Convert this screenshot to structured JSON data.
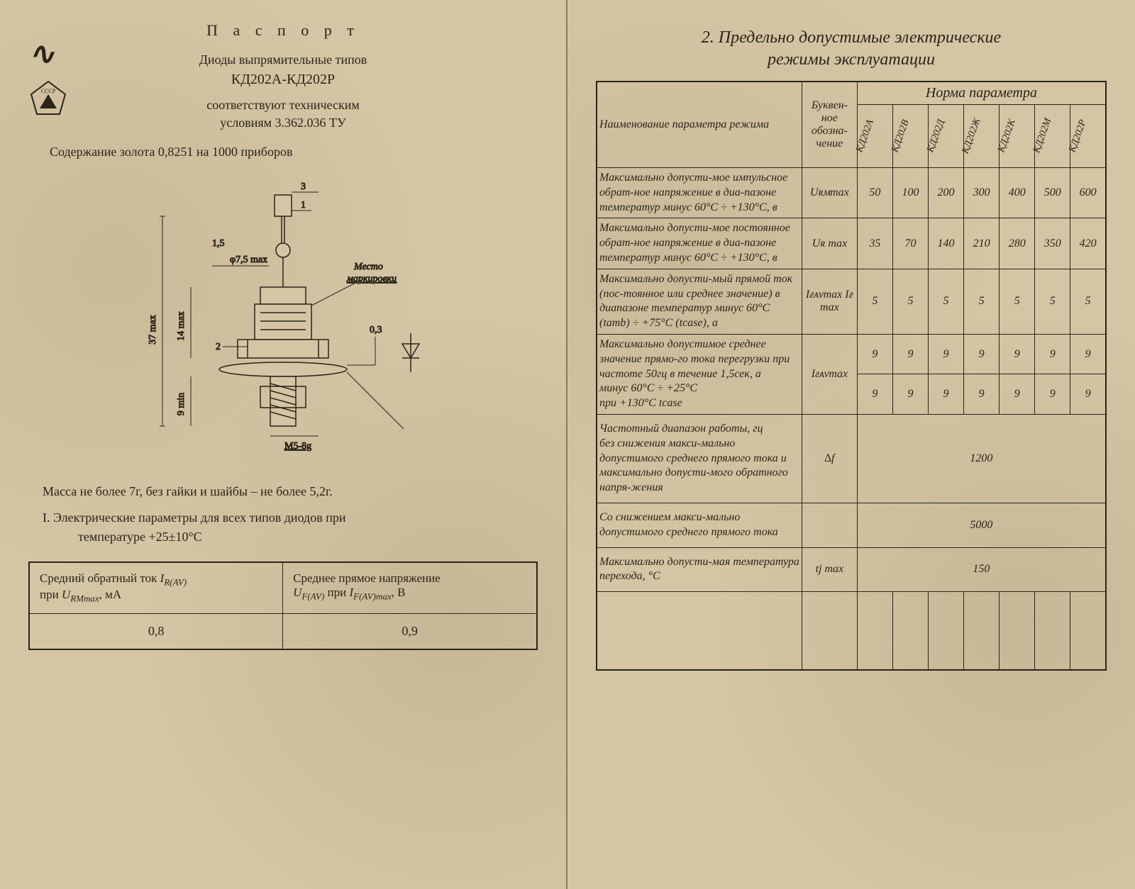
{
  "left": {
    "title": "П а с п о р т",
    "line1": "Диоды выпрямительные типов",
    "line2": "КД202А-КД202Р",
    "line3": "соответствуют техническим",
    "line4": "условиям 3.362.036 ТУ",
    "gold": "Содержание золота 0,8251 на 1000 приборов",
    "dims": {
      "h37": "37 max",
      "h14": "14 max",
      "h9": "9 min",
      "d75": "φ7,5 max",
      "t3": "3",
      "t1": "1",
      "t15": "1,5",
      "t2": "2",
      "t03": "0,3",
      "thread": "М5-8g",
      "mark1": "Место",
      "mark2": "маркировки"
    },
    "mass": "Масса не более 7г, без гайки и шайбы – не более 5,2г.",
    "sec1a": "I. Электрические параметры для всех типов диодов при",
    "sec1b": "температуре +25±10°С",
    "table1": {
      "h1a": "Средний обратный ток ",
      "h1b": "I",
      "h1c": "R(AV)",
      "h1d": "при ",
      "h1e": "U",
      "h1f": "RMmax",
      "h1g": ", мА",
      "h2a": "Среднее прямое напряжение",
      "h2b": "U",
      "h2c": "F(AV)",
      "h2d": "   при ",
      "h2e": "I",
      "h2f": "F(AV)max",
      "h2g": ", В",
      "v1": "0,8",
      "v2": "0,9"
    }
  },
  "right": {
    "title1": "2. Предельно допустимые электрические",
    "title2": "режимы эксплуатации",
    "headers": {
      "name": "Наименование параметра режима",
      "sym": "Буквен-ное обозна-чение",
      "norm": "Норма   параметра",
      "cols": [
        "КД202А",
        "КД202В",
        "КД202Д",
        "КД202Ж",
        "КД202К",
        "КД202М",
        "КД202Р"
      ]
    },
    "rows": [
      {
        "desc": "Максимально допусти-мое импульсное обрат-ное напряжение в диа-пазоне температур минус 60°С ÷ +130°С, в",
        "sym": "Uʀᴍmax",
        "vals": [
          "50",
          "100",
          "200",
          "300",
          "400",
          "500",
          "600"
        ]
      },
      {
        "desc": "Максимально допусти-мое постоянное обрат-ное напряжение в диа-пазоне температур минус 60°С ÷ +130°С, в",
        "sym": "Uʀ max",
        "vals": [
          "35",
          "70",
          "140",
          "210",
          "280",
          "350",
          "420"
        ]
      },
      {
        "desc": "Максимально допусти-мый прямой ток (пос-тоянное или среднее значение) в диапазоне температур минус 60°С (tаmb) ÷ +75°С (tcase), а",
        "sym": "Iғᴀᴠmax Iғ max",
        "vals": [
          "5",
          "5",
          "5",
          "5",
          "5",
          "5",
          "5"
        ]
      },
      {
        "desc": "Максимально допустимое среднее значение прямо-го тока перегрузки при частоте 50гц в течение 1,5сек, а\nминус 60°С ÷ +25°С\nпри +130°С tcase",
        "sym": "Iғᴀᴠmax",
        "vals2": [
          [
            "9",
            "9",
            "9",
            "9",
            "9",
            "9",
            "9"
          ],
          [
            "9",
            "9",
            "9",
            "9",
            "9",
            "9",
            "9"
          ]
        ]
      },
      {
        "desc": "Частотный диапазон работы, гц\nбез снижения макси-мально допустимого среднего прямого тока и максимально допусти-мого обратного напря-жения",
        "sym": "∆f",
        "span": "1200"
      },
      {
        "desc": "Со снижением макси-мально допустимого среднего прямого тока",
        "sym": "",
        "span": "5000"
      },
      {
        "desc": "Максимально допусти-мая температура перехода, °С",
        "sym": "tj max",
        "span": "150"
      }
    ]
  },
  "colors": {
    "paper": "#d4c5a4",
    "ink": "#2a2418",
    "border": "#2a2418"
  }
}
